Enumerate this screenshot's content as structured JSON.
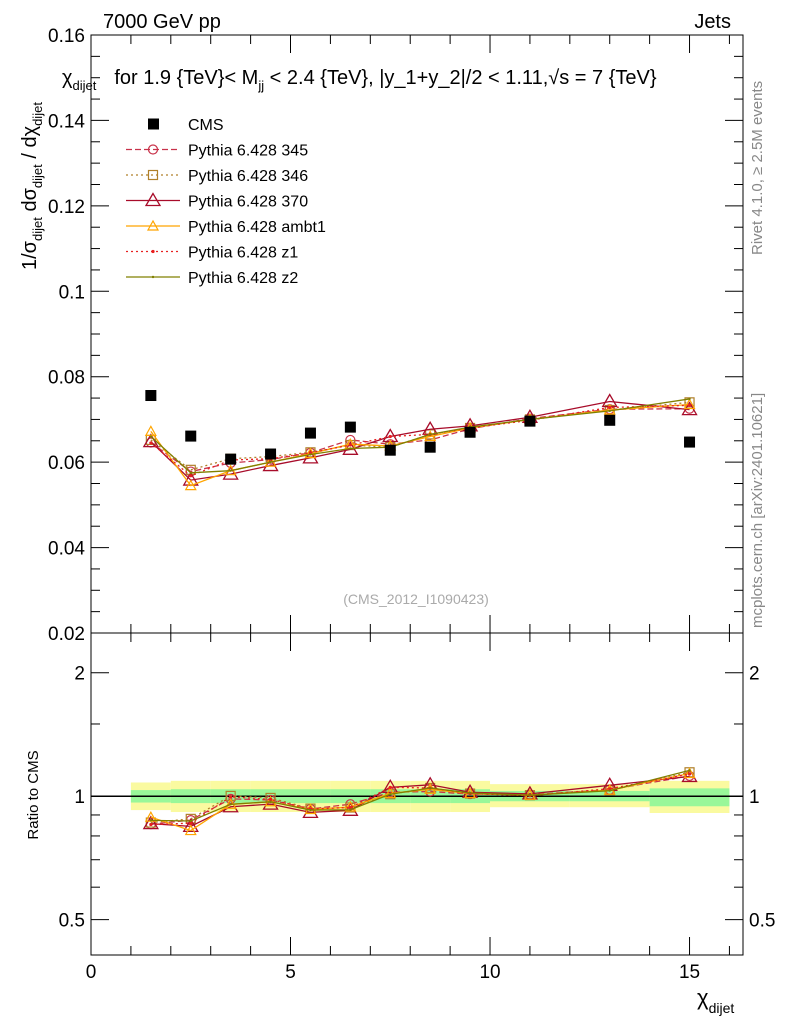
{
  "header": {
    "left": "7000 GeV pp",
    "right": "Jets"
  },
  "side_labels": {
    "rivet": "Rivet 4.1.0, ≥ 2.5M events",
    "mcplots": "mcplots.cern.ch [arXiv:2401.10621]"
  },
  "watermark": "(CMS_2012_I1090423)",
  "colors": {
    "CMS": "#000000",
    "345": "#c8324a",
    "346": "#b0802a",
    "370": "#a80c2a",
    "ambt1": "#ffa500",
    "z1": "#e82020",
    "z2": "#808000",
    "band_inner": "#99f799",
    "band_outer": "#fafaa0"
  },
  "chart_data": [
    {
      "type": "line",
      "title": "χ_dijet for 1.9 {TeV}< M_jj < 2.4 {TeV}, |y_1+y_2|/2 < 1.11,√s = 7 {TeV}",
      "title_parts": {
        "chi": "χ",
        "chi_sub": "dijet",
        "rest1": "for 1.9 {TeV}< M",
        "m_sub": "jj",
        "rest2": " < 2.4 {TeV}, |y_1+y_2|/2 < 1.11,√s = 7 {TeV}"
      },
      "ylabel": "1/σ_dijet dσ_dijet / dχ_dijet",
      "ylabel_parts": {
        "a": "1/σ",
        "a_sub": "dijet",
        "b": " dσ",
        "b_sub": "dijet",
        "c": " / dχ",
        "c_sub": "dijet"
      },
      "xlim": [
        0,
        16.34
      ],
      "ylim": [
        0.02,
        0.16
      ],
      "yticks": [
        0.02,
        0.04,
        0.06,
        0.08,
        0.1,
        0.12,
        0.14,
        0.16
      ],
      "ytick_labels": [
        "0.02",
        "0.04",
        "0.06",
        "0.08",
        "0.1",
        "0.12",
        "0.14",
        "0.16"
      ],
      "legend_position": "top-left",
      "x": [
        1.5,
        2.5,
        3.5,
        4.5,
        5.5,
        6.5,
        7.5,
        8.5,
        9.5,
        11,
        13,
        15
      ],
      "bin_edges": [
        1,
        2,
        3,
        4,
        5,
        6,
        7,
        8,
        9,
        10,
        12,
        14,
        16
      ],
      "series": [
        {
          "key": "CMS",
          "name": "CMS",
          "values": [
            0.0756,
            0.0661,
            0.0607,
            0.0619,
            0.0668,
            0.0682,
            0.0628,
            0.0635,
            0.067,
            0.0696,
            0.0698,
            0.0647
          ]
        },
        {
          "key": "345",
          "name": "Pythia 6.428 345",
          "values": [
            0.0646,
            0.0578,
            0.0598,
            0.0606,
            0.0622,
            0.0652,
            0.0642,
            0.0652,
            0.0678,
            0.0702,
            0.0724,
            0.0725
          ]
        },
        {
          "key": "346",
          "name": "Pythia 6.428 346",
          "values": [
            0.0652,
            0.0582,
            0.0608,
            0.0613,
            0.0623,
            0.064,
            0.0635,
            0.0665,
            0.068,
            0.07,
            0.0722,
            0.074
          ]
        },
        {
          "key": "370",
          "name": "Pythia 6.428 370",
          "values": [
            0.0648,
            0.0558,
            0.0572,
            0.0592,
            0.061,
            0.063,
            0.066,
            0.0677,
            0.0685,
            0.0705,
            0.0742,
            0.0723
          ]
        },
        {
          "key": "ambt1",
          "name": "Pythia 6.428 ambt1",
          "values": [
            0.0672,
            0.0545,
            0.058,
            0.06,
            0.062,
            0.0642,
            0.0638,
            0.066,
            0.068,
            0.07,
            0.0722,
            0.0735
          ]
        },
        {
          "key": "z1",
          "name": "Pythia 6.428 z1",
          "values": [
            0.0645,
            0.0568,
            0.0605,
            0.0608,
            0.0622,
            0.064,
            0.066,
            0.0665,
            0.068,
            0.0698,
            0.0728,
            0.0733
          ]
        },
        {
          "key": "z2",
          "name": "Pythia 6.428 z2",
          "values": [
            0.066,
            0.0575,
            0.058,
            0.06,
            0.0618,
            0.0632,
            0.0635,
            0.0665,
            0.0682,
            0.07,
            0.072,
            0.0748
          ]
        }
      ]
    },
    {
      "type": "line",
      "ylabel": "Ratio to CMS",
      "yscale": "log",
      "ylim": [
        0.41,
        2.5
      ],
      "yticks": [
        0.5,
        1,
        2
      ],
      "ytick_labels": [
        "0.5",
        "1",
        "2"
      ],
      "xticks": [
        0,
        5,
        10,
        15
      ],
      "xtick_labels": [
        "0",
        "5",
        "10",
        "15"
      ],
      "xlabel": "χ_dijet",
      "xlabel_parts": {
        "chi": "χ",
        "sub": "dijet"
      },
      "band_inner": [
        [
          0.965,
          1.035
        ],
        [
          0.962,
          1.04
        ],
        [
          0.962,
          1.04
        ],
        [
          0.962,
          1.04
        ],
        [
          0.962,
          1.04
        ],
        [
          0.962,
          1.04
        ],
        [
          0.962,
          1.04
        ],
        [
          0.962,
          1.04
        ],
        [
          0.962,
          1.04
        ],
        [
          0.972,
          1.03
        ],
        [
          0.972,
          1.03
        ],
        [
          0.945,
          1.045
        ]
      ],
      "band_outer": [
        [
          0.925,
          1.08
        ],
        [
          0.915,
          1.09
        ],
        [
          0.915,
          1.09
        ],
        [
          0.915,
          1.09
        ],
        [
          0.915,
          1.09
        ],
        [
          0.915,
          1.09
        ],
        [
          0.915,
          1.09
        ],
        [
          0.915,
          1.09
        ],
        [
          0.915,
          1.09
        ],
        [
          0.94,
          1.07
        ],
        [
          0.94,
          1.07
        ],
        [
          0.91,
          1.09
        ]
      ]
    }
  ]
}
